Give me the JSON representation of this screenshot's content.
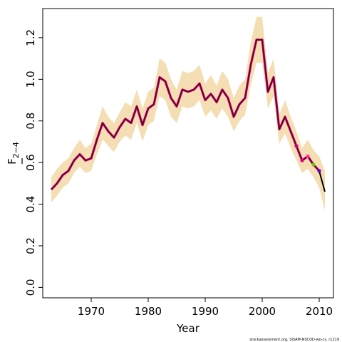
{
  "chart_data": {
    "type": "line",
    "title": "",
    "xlabel": "Year",
    "ylabel_main": "F",
    "ylabel_sub": "2−4",
    "footer": "stockassessment.org, SISAM-NSCOD-wo-cs, r1219",
    "xlim": [
      1961.5,
      2012.5
    ],
    "ylim": [
      -0.05,
      1.34
    ],
    "xticks": [
      1970,
      1980,
      1990,
      2000,
      2010
    ],
    "yticks": [
      0.0,
      0.2,
      0.4,
      0.6,
      0.8,
      1.0,
      1.2
    ],
    "ytick_labels": [
      "0.0",
      "0.2",
      "0.4",
      "0.6",
      "0.8",
      "1.0",
      "1.2"
    ],
    "grid": false,
    "colors": {
      "band": "#f5deb3",
      "main_line": "#5a0a2a",
      "retro_line": "#e0007a",
      "final_line": "#000000"
    },
    "series": [
      {
        "x": [
          1963,
          1964,
          1965,
          1966,
          1967,
          1968,
          1969,
          1970,
          1971,
          1972,
          1973,
          1974,
          1975,
          1976,
          1977,
          1978,
          1979,
          1980,
          1981,
          1982,
          1983,
          1984,
          1985,
          1986,
          1987,
          1988,
          1989,
          1990,
          1991,
          1992,
          1993,
          1994,
          1995,
          1996,
          1997,
          1998,
          1999,
          2000,
          2001,
          2002,
          2003,
          2004,
          2005,
          2006,
          2007,
          2008,
          2009,
          2010,
          2011
        ],
        "values": [
          0.47,
          0.5,
          0.54,
          0.56,
          0.61,
          0.64,
          0.61,
          0.62,
          0.71,
          0.79,
          0.75,
          0.72,
          0.77,
          0.81,
          0.79,
          0.87,
          0.78,
          0.86,
          0.88,
          1.01,
          0.99,
          0.91,
          0.87,
          0.95,
          0.94,
          0.95,
          0.98,
          0.9,
          0.93,
          0.89,
          0.95,
          0.91,
          0.82,
          0.88,
          0.91,
          1.07,
          1.19,
          1.19,
          0.94,
          1.01,
          0.76,
          0.82,
          0.75,
          0.68,
          0.61,
          0.63,
          0.59,
          0.56,
          0.46
        ],
        "lower": [
          0.41,
          0.44,
          0.48,
          0.5,
          0.55,
          0.58,
          0.55,
          0.56,
          0.64,
          0.71,
          0.68,
          0.65,
          0.7,
          0.73,
          0.71,
          0.79,
          0.7,
          0.78,
          0.8,
          0.92,
          0.9,
          0.82,
          0.79,
          0.87,
          0.86,
          0.87,
          0.9,
          0.82,
          0.85,
          0.81,
          0.86,
          0.82,
          0.75,
          0.8,
          0.83,
          0.97,
          1.08,
          1.08,
          0.86,
          0.92,
          0.69,
          0.74,
          0.67,
          0.61,
          0.55,
          0.57,
          0.53,
          0.48,
          0.37
        ],
        "upper": [
          0.53,
          0.57,
          0.6,
          0.62,
          0.67,
          0.71,
          0.67,
          0.69,
          0.78,
          0.87,
          0.82,
          0.79,
          0.84,
          0.89,
          0.87,
          0.95,
          0.86,
          0.94,
          0.96,
          1.1,
          1.08,
          1.0,
          0.95,
          1.04,
          1.03,
          1.04,
          1.07,
          0.98,
          1.02,
          0.97,
          1.04,
          1.0,
          0.91,
          0.97,
          1.0,
          1.18,
          1.3,
          1.3,
          1.03,
          1.1,
          0.83,
          0.9,
          0.82,
          0.75,
          0.67,
          0.71,
          0.66,
          0.63,
          0.56
        ]
      }
    ],
    "retro_points": [
      {
        "x": 2006,
        "y": 0.68,
        "color": "#c8007a"
      },
      {
        "x": 2007,
        "y": 0.61,
        "color": "#e0007a"
      },
      {
        "x": 2008,
        "y": 0.63,
        "color": "#ff3399"
      },
      {
        "x": 2009,
        "y": 0.59,
        "color": "#66cc00"
      },
      {
        "x": 2010,
        "y": 0.56,
        "color": "#6600cc"
      }
    ]
  }
}
